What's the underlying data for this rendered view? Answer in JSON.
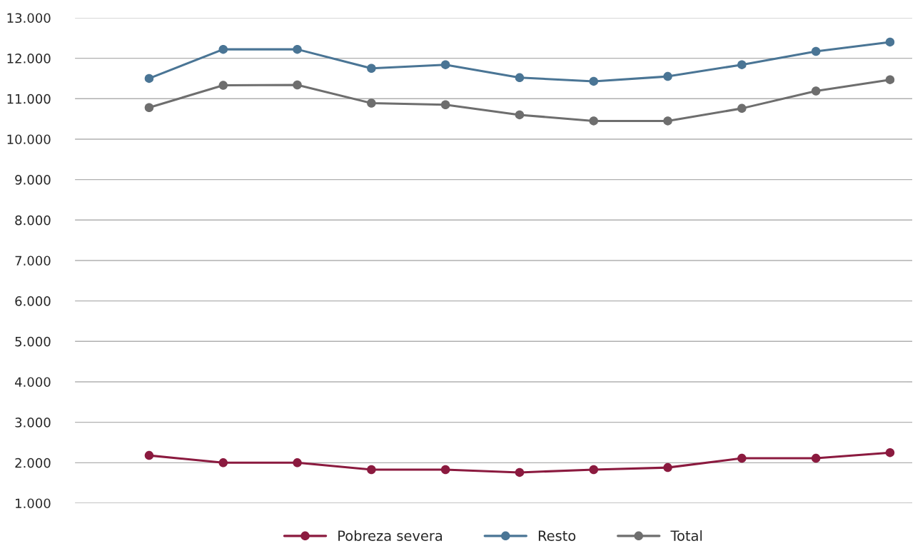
{
  "chart_data": {
    "type": "line",
    "categories": [
      null,
      null,
      null,
      null,
      null,
      null,
      null,
      null,
      null,
      null,
      null
    ],
    "series": [
      {
        "name": "Pobreza severa",
        "color": "#8b1a3f",
        "values": [
          2180,
          2000,
          2000,
          1830,
          1830,
          1760,
          1830,
          1880,
          2110,
          2110,
          2250
        ]
      },
      {
        "name": "Resto",
        "color": "#4a7595",
        "values": [
          11500,
          12220,
          12220,
          11750,
          11840,
          11520,
          11430,
          11550,
          11840,
          12170,
          12400
        ]
      },
      {
        "name": "Total",
        "color": "#6e6e6e",
        "values": [
          10780,
          11330,
          11340,
          10890,
          10850,
          10600,
          10450,
          10450,
          10760,
          11190,
          11470
        ]
      }
    ],
    "ylim": [
      1000,
      13000
    ],
    "yticks": [
      {
        "value": 1000,
        "label": "1.000"
      },
      {
        "value": 2000,
        "label": "2.000"
      },
      {
        "value": 3000,
        "label": "3.000"
      },
      {
        "value": 4000,
        "label": "4.000"
      },
      {
        "value": 5000,
        "label": "5.000"
      },
      {
        "value": 6000,
        "label": "6.000"
      },
      {
        "value": 7000,
        "label": "7.000"
      },
      {
        "value": 8000,
        "label": "8.000"
      },
      {
        "value": 9000,
        "label": "9.000"
      },
      {
        "value": 10000,
        "label": "10.000"
      },
      {
        "value": 11000,
        "label": "11.000"
      },
      {
        "value": 12000,
        "label": "12.000"
      },
      {
        "value": 13000,
        "label": "13.000"
      }
    ],
    "grid": "y",
    "legend": "bottom",
    "marker": "circle",
    "line_style": "solid"
  }
}
